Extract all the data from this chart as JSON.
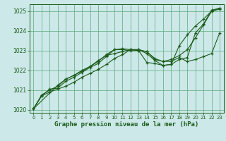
{
  "title": "Graphe pression niveau de la mer (hPa)",
  "bg_color": "#cce8e8",
  "grid_color": "#5aaa7a",
  "line_color": "#1a5c1a",
  "ylim": [
    1019.85,
    1025.35
  ],
  "xlim": [
    -0.5,
    23.5
  ],
  "yticks": [
    1020,
    1021,
    1022,
    1023,
    1024,
    1025
  ],
  "xticks": [
    0,
    1,
    2,
    3,
    4,
    5,
    6,
    7,
    8,
    9,
    10,
    11,
    12,
    13,
    14,
    15,
    16,
    17,
    18,
    19,
    20,
    21,
    22,
    23
  ],
  "line1_x": [
    0,
    1,
    2,
    3,
    4,
    5,
    6,
    7,
    8,
    9,
    10,
    11,
    12,
    13,
    14,
    15,
    16,
    17,
    18,
    19,
    20,
    21,
    22,
    23
  ],
  "line1_y": [
    1020.05,
    1020.7,
    1020.9,
    1021.05,
    1021.2,
    1021.4,
    1021.65,
    1021.85,
    1022.05,
    1022.3,
    1022.6,
    1022.8,
    1023.05,
    1023.05,
    1022.95,
    1022.55,
    1022.45,
    1022.55,
    1022.75,
    1023.05,
    1023.65,
    1024.3,
    1025.0,
    1025.1
  ],
  "line2_x": [
    0,
    1,
    2,
    3,
    4,
    5,
    6,
    7,
    8,
    9,
    10,
    11,
    12,
    13,
    14,
    15,
    16,
    17,
    18,
    19,
    20,
    21,
    22,
    23
  ],
  "line2_y": [
    1020.05,
    1020.7,
    1021.05,
    1021.1,
    1021.45,
    1021.65,
    1021.9,
    1022.15,
    1022.35,
    1022.7,
    1023.05,
    1023.05,
    1023.0,
    1023.0,
    1022.4,
    1022.35,
    1022.25,
    1022.3,
    1023.25,
    1023.8,
    1024.25,
    1024.6,
    1025.0,
    1025.15
  ],
  "line3_x": [
    0,
    1,
    2,
    3,
    4,
    5,
    6,
    7,
    8,
    9,
    10,
    11,
    12,
    13,
    14,
    15,
    16,
    17,
    18,
    19,
    20,
    21,
    22,
    23
  ],
  "line3_y": [
    1020.05,
    1020.75,
    1021.0,
    1021.2,
    1021.55,
    1021.75,
    1022.0,
    1022.2,
    1022.45,
    1022.8,
    1023.05,
    1023.1,
    1023.05,
    1023.0,
    1022.95,
    1022.6,
    1022.45,
    1022.45,
    1022.65,
    1022.45,
    1022.55,
    1022.7,
    1022.85,
    1023.9
  ],
  "line4_x": [
    0,
    3,
    4,
    5,
    6,
    7,
    8,
    9,
    10,
    11,
    12,
    13,
    14,
    15,
    16,
    17,
    18,
    19,
    20,
    21,
    22,
    23
  ],
  "line4_y": [
    1020.05,
    1021.25,
    1021.55,
    1021.75,
    1021.95,
    1022.2,
    1022.5,
    1022.75,
    1022.85,
    1022.95,
    1023.05,
    1023.05,
    1022.85,
    1022.5,
    1022.25,
    1022.3,
    1022.55,
    1022.65,
    1023.9,
    1024.35,
    1025.05,
    1025.15
  ]
}
